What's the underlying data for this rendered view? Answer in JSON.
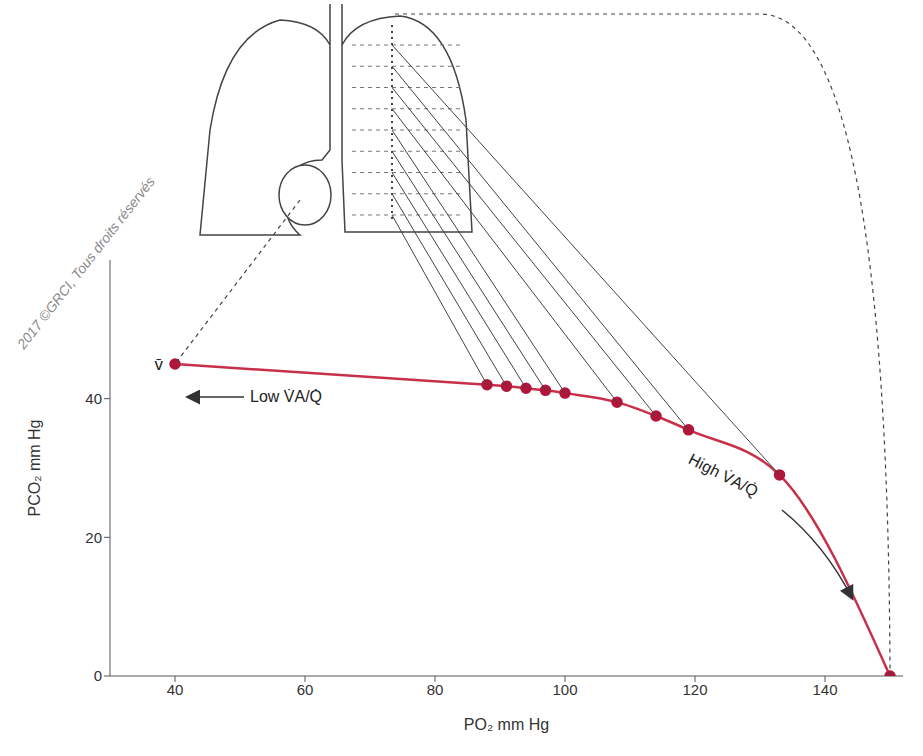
{
  "chart_data": {
    "type": "line",
    "x_label": "PO₂ mm Hg",
    "y_label": "PCO₂ mm Hg",
    "x": [
      40,
      88,
      91,
      94,
      97,
      100,
      108,
      114,
      119,
      133,
      150
    ],
    "values": [
      45,
      42,
      41.8,
      41.5,
      41.2,
      40.8,
      39.5,
      37.5,
      35.5,
      29,
      0
    ],
    "color": "#c8304a",
    "marker": "circle",
    "xlim": [
      30,
      152
    ],
    "xticks": [
      40,
      60,
      80,
      100,
      120,
      140
    ],
    "ylim": [
      0,
      60
    ],
    "yticks": [
      0,
      20,
      40
    ],
    "point_label": "v̄",
    "annotations": [
      "Low V̇A/Q̇",
      "High V̇A/Q̇"
    ],
    "watermark": "2017 ©GRCI, Tous droits réservés"
  }
}
